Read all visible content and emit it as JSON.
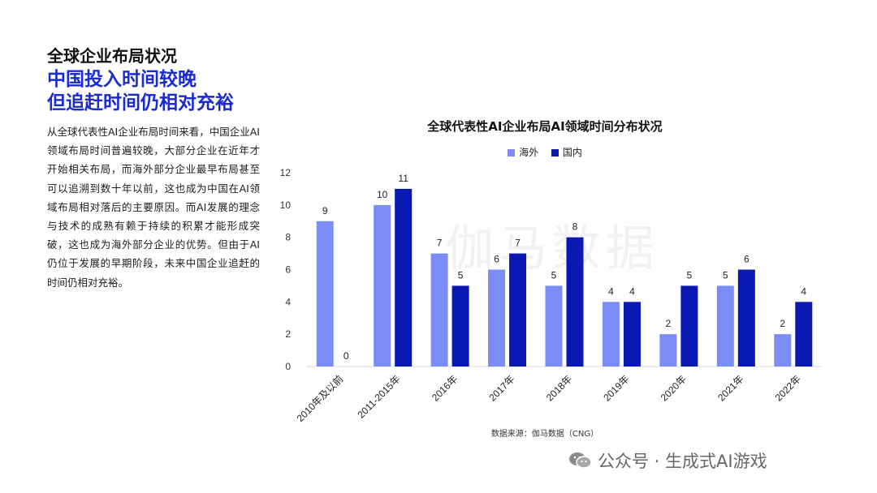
{
  "header": {
    "kicker": "全球企业布局状况",
    "headline_line1": "中国投入时间较晚",
    "headline_line2": "但追赶时间仍相对充裕"
  },
  "body_text": "从全球代表性AI企业布局时间来看，中国企业AI领域布局时间普遍较晚，大部分企业在近年才开始相关布局，而海外部分企业最早布局甚至可以追溯到数十年以前，这也成为中国在AI领域布局相对落后的主要原因。而AI发展的理念与技术的成熟有赖于持续的积累才能形成突破，这也成为海外部分企业的优势。但由于AI仍位于发展的早期阶段，未来中国企业追赶的时间仍相对充裕。",
  "chart_data": {
    "type": "bar",
    "title": "全球代表性AI企业布局AI领域时间分布状况",
    "categories": [
      "2010年及以前",
      "2011-2015年",
      "2016年",
      "2017年",
      "2018年",
      "2019年",
      "2020年",
      "2021年",
      "2022年"
    ],
    "series": [
      {
        "name": "海外",
        "values": [
          9,
          10,
          7,
          6,
          5,
          4,
          2,
          5,
          2
        ],
        "color": "#7b8cf7"
      },
      {
        "name": "国内",
        "values": [
          0,
          11,
          5,
          7,
          8,
          4,
          5,
          6,
          4
        ],
        "color": "#0a19b4"
      }
    ],
    "ylim": [
      0,
      12
    ],
    "yticks": [
      0,
      2,
      4,
      6,
      8,
      10,
      12
    ],
    "xlabel": "",
    "ylabel": "",
    "grid": false,
    "legend": "top-center",
    "data_labels": true
  },
  "source": "数据来源：伽马数据（CNG）",
  "watermark_faint": "伽马数据",
  "footer_watermark": "公众号 · 生成式AI游戏",
  "icons": {
    "footer": "wechat-icon"
  }
}
